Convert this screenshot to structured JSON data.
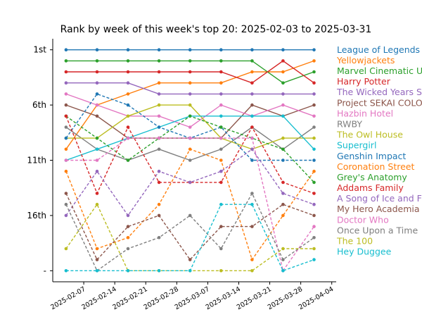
{
  "chart_data": {
    "type": "line",
    "title": "Rank by week of this week's top 20: 2025-02-03 to 2025-03-31",
    "xlabel": "",
    "ylabel": "",
    "x_dates": [
      "2025-02-03",
      "2025-02-10",
      "2025-02-17",
      "2025-02-24",
      "2025-03-03",
      "2025-03-10",
      "2025-03-17",
      "2025-03-24",
      "2025-03-31"
    ],
    "x_tick_labels": [
      "2025-02-07",
      "2025-02-14",
      "2025-02-21",
      "2025-02-28",
      "2025-03-07",
      "2025-03-14",
      "2025-03-21",
      "2025-03-28",
      "2025-04-04"
    ],
    "x_tick_dates": [
      "2025-02-07",
      "2025-02-14",
      "2025-02-21",
      "2025-02-28",
      "2025-03-07",
      "2025-03-14",
      "2025-03-21",
      "2025-03-28",
      "2025-04-04"
    ],
    "xlim": [
      "2025-01-31",
      "2025-04-05"
    ],
    "y_ticks": [
      {
        "label": "1st",
        "rank": 1
      },
      {
        "label": "6th",
        "rank": 6
      },
      {
        "label": "11th",
        "rank": 11
      },
      {
        "label": "16th",
        "rank": 16
      },
      {
        "label": "-",
        "rank": 21
      }
    ],
    "ylim": [
      0,
      22
    ],
    "y_inverted": true,
    "unranked_value": "-",
    "grid": false,
    "legend": "labels at line ends, right",
    "series": [
      {
        "name": "League of Legends",
        "color": "#1f77b4",
        "values": [
          1,
          1,
          1,
          1,
          1,
          1,
          1,
          1,
          1
        ]
      },
      {
        "name": "Yellowjackets",
        "color": "#ff7f0e",
        "values": [
          10,
          6,
          5,
          4,
          4,
          4,
          3,
          3,
          2
        ]
      },
      {
        "name": "Marvel Cinematic Universe",
        "color": "#2ca02c",
        "values": [
          2,
          2,
          2,
          2,
          2,
          2,
          2,
          4,
          3
        ]
      },
      {
        "name": "Harry Potter",
        "color": "#d62728",
        "values": [
          3,
          3,
          3,
          3,
          3,
          3,
          4,
          2,
          4
        ]
      },
      {
        "name": "The Wicked Years Series",
        "color": "#9467bd",
        "values": [
          4,
          4,
          4,
          5,
          5,
          5,
          5,
          5,
          5
        ]
      },
      {
        "name": "Project SEKAI COLORFUL STAGE",
        "color": "#8c564b",
        "values": [
          6,
          7,
          9,
          9,
          9,
          9,
          6,
          7,
          6
        ]
      },
      {
        "name": "Hazbin Hotel",
        "color": "#e377c2",
        "values": [
          5,
          6,
          7,
          7,
          8,
          6,
          7,
          6,
          7
        ]
      },
      {
        "name": "RWBY",
        "color": "#7f7f7f",
        "values": [
          8,
          10,
          11,
          10,
          11,
          10,
          8,
          10,
          8
        ]
      },
      {
        "name": "The Owl House",
        "color": "#bcbd22",
        "values": [
          9,
          9,
          7,
          6,
          6,
          9,
          10,
          9,
          9
        ]
      },
      {
        "name": "Supergirl",
        "color": "#17becf",
        "values": [
          11,
          10,
          9,
          8,
          7,
          7,
          7,
          7,
          10
        ]
      },
      {
        "name": "Genshin Impact",
        "color": "#1f77b4",
        "values": [
          9,
          5,
          6,
          8,
          9,
          8,
          11,
          11,
          11
        ]
      },
      {
        "name": "Coronation Street",
        "color": "#ff7f0e",
        "values": [
          12,
          19,
          18,
          15,
          10,
          11,
          20,
          16,
          12
        ]
      },
      {
        "name": "Grey's Anatomy",
        "color": "#2ca02c",
        "values": [
          7,
          9,
          11,
          9,
          7,
          8,
          9,
          10,
          13
        ]
      },
      {
        "name": "Addams Family",
        "color": "#d62728",
        "values": [
          7,
          14,
          8,
          13,
          13,
          13,
          8,
          13,
          14
        ]
      },
      {
        "name": "A Song of Ice and Fire",
        "color": "#9467bd",
        "values": [
          16,
          12,
          16,
          12,
          13,
          12,
          10,
          14,
          15
        ]
      },
      {
        "name": "My Hero Academia",
        "color": "#8c564b",
        "values": [
          14,
          20,
          17,
          16,
          20,
          17,
          17,
          15,
          16
        ]
      },
      {
        "name": "Doctor Who",
        "color": "#e377c2",
        "values": [
          11,
          11,
          9,
          9,
          9,
          9,
          9,
          21,
          17
        ]
      },
      {
        "name": "Once Upon a Time",
        "color": "#7f7f7f",
        "values": [
          15,
          21,
          19,
          18,
          16,
          19,
          14,
          20,
          18
        ]
      },
      {
        "name": "The 100",
        "color": "#bcbd22",
        "values": [
          19,
          15,
          21,
          21,
          21,
          21,
          21,
          19,
          19
        ]
      },
      {
        "name": "Hey Duggee",
        "color": "#17becf",
        "values": [
          21,
          21,
          21,
          21,
          21,
          15,
          15,
          21,
          20
        ]
      }
    ]
  }
}
